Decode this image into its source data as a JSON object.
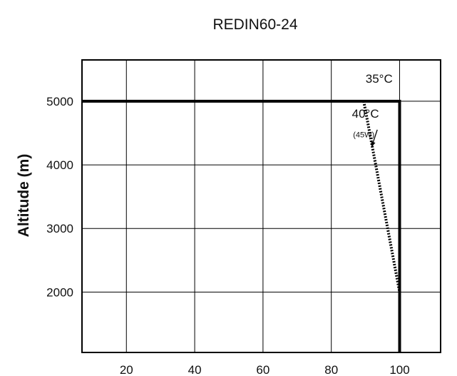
{
  "chart_data": {
    "type": "line",
    "title": "REDIN60-24",
    "xlabel": "",
    "ylabel": "Altitude (m)",
    "xlim": [
      7,
      112
    ],
    "ylim": [
      1050,
      5650
    ],
    "x_ticks": [
      20,
      40,
      60,
      80,
      100
    ],
    "y_ticks": [
      2000,
      3000,
      4000,
      5000
    ],
    "grid": true,
    "series": [
      {
        "name": "35°C",
        "style": "solid",
        "color": "#000000",
        "x": [
          7,
          100,
          100
        ],
        "y": [
          5000,
          5000,
          1050
        ]
      },
      {
        "name": "40°C",
        "style": "dotted",
        "color": "#000000",
        "x": [
          89.5,
          100
        ],
        "y": [
          5000,
          2000
        ]
      }
    ],
    "annotations": [
      {
        "text": "35°C",
        "x": 94,
        "y": 5290
      },
      {
        "text": "40°C",
        "x": 90,
        "y": 4740
      },
      {
        "text": "(45W)",
        "x": 89.5,
        "y": 4430
      }
    ],
    "arrow": {
      "from": [
        89.7,
        4440
      ],
      "to": [
        91.8,
        4280
      ]
    }
  }
}
